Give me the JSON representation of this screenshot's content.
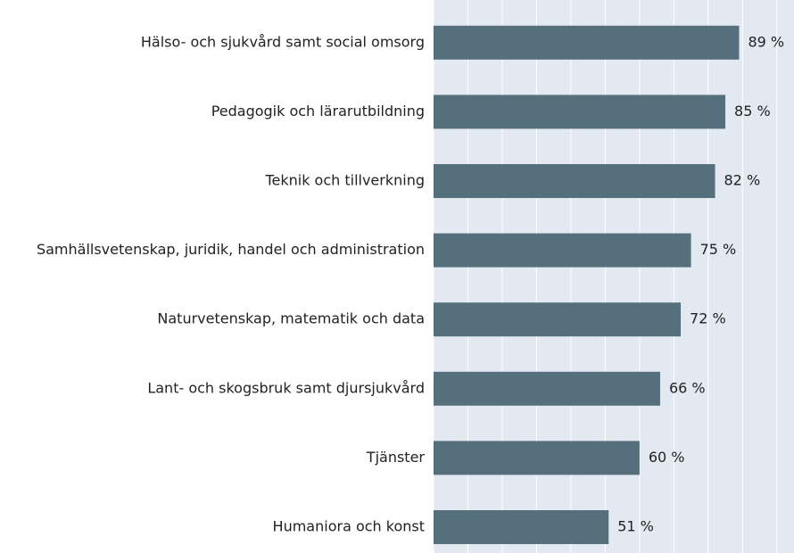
{
  "chart_data": {
    "type": "barh",
    "categories": [
      "Hälso- och sjukvård samt social omsorg",
      "Pedagogik och lärarutbildning",
      "Teknik och tillverkning",
      "Samhällsvetenskap, juridik, handel och administration",
      "Naturvetenskap, matematik och data",
      "Lant- och skogsbruk samt djursjukvård",
      "Tjänster",
      "Humaniora och konst"
    ],
    "values": [
      89,
      85,
      82,
      75,
      72,
      66,
      60,
      51
    ],
    "value_labels": [
      "89 %",
      "85 %",
      "82 %",
      "75 %",
      "72 %",
      "66 %",
      "60 %",
      "51 %"
    ],
    "color": "#556f7c",
    "xlim": [
      0,
      105
    ],
    "xticks": [
      0,
      10,
      20,
      30,
      40,
      50,
      60,
      70,
      80,
      90,
      100
    ],
    "grid": true
  }
}
